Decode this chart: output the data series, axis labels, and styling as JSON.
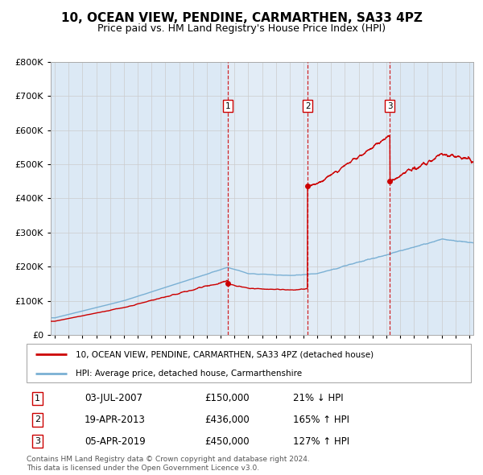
{
  "title": "10, OCEAN VIEW, PENDINE, CARMARTHEN, SA33 4PZ",
  "subtitle": "Price paid vs. HM Land Registry's House Price Index (HPI)",
  "transactions": [
    {
      "num": 1,
      "date_label": "03-JUL-2007",
      "year": 2007.504,
      "price": 150000,
      "pct": "21% ↓ HPI"
    },
    {
      "num": 2,
      "date_label": "19-APR-2013",
      "year": 2013.298,
      "price": 436000,
      "pct": "165% ↑ HPI"
    },
    {
      "num": 3,
      "date_label": "05-APR-2019",
      "year": 2019.262,
      "price": 450000,
      "pct": "127% ↑ HPI"
    }
  ],
  "legend_property": "10, OCEAN VIEW, PENDINE, CARMARTHEN, SA33 4PZ (detached house)",
  "legend_hpi": "HPI: Average price, detached house, Carmarthenshire",
  "footnote1": "Contains HM Land Registry data © Crown copyright and database right 2024.",
  "footnote2": "This data is licensed under the Open Government Licence v3.0.",
  "ylim": [
    0,
    800000
  ],
  "yticks": [
    0,
    100000,
    200000,
    300000,
    400000,
    500000,
    600000,
    700000,
    800000
  ],
  "xmin": 1994.7,
  "xmax": 2025.3,
  "property_color": "#cc0000",
  "hpi_color": "#7ab0d4",
  "vline_color": "#cc0000",
  "background_color": "#dce9f5",
  "shaded_color": "#e8f0f8",
  "plot_bg": "#ffffff",
  "grid_color": "#cccccc",
  "marker_y": 670000,
  "title_fontsize": 11,
  "subtitle_fontsize": 9
}
